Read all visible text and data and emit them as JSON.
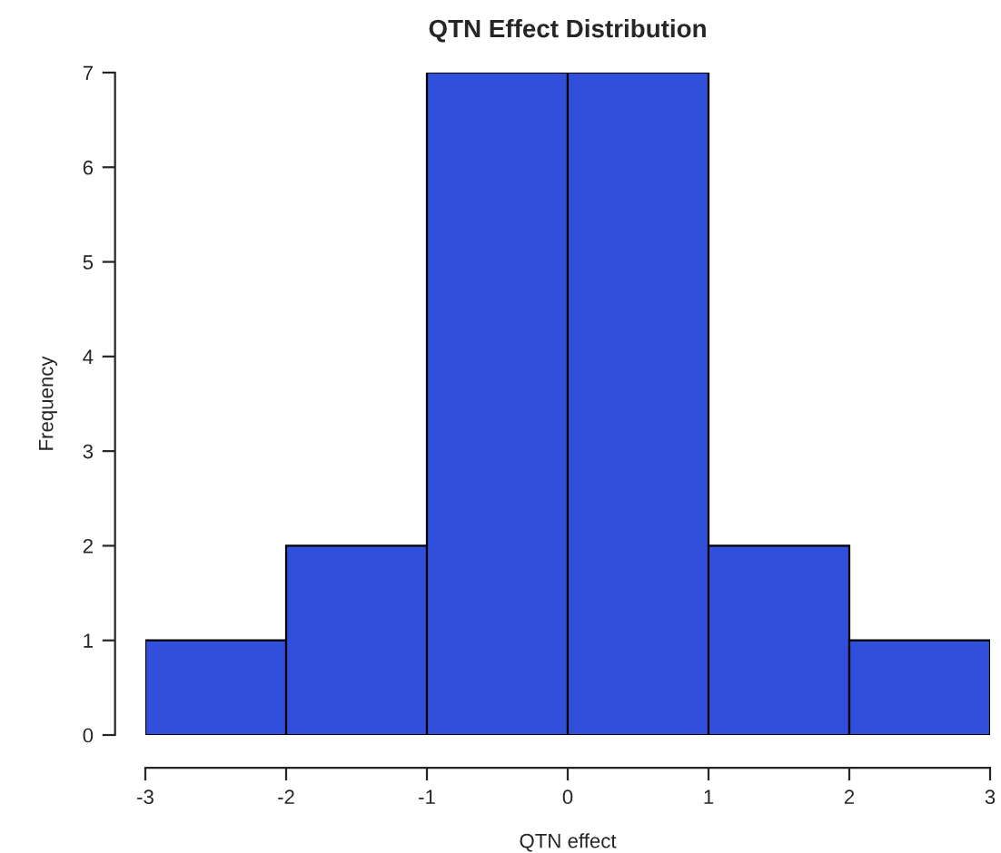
{
  "chart_data": {
    "type": "histogram",
    "title": "QTN Effect Distribution",
    "xlabel": "QTN effect",
    "ylabel": "Frequency",
    "bins": [
      -3,
      -2,
      -1,
      0,
      1,
      2,
      3
    ],
    "values": [
      1,
      2,
      7,
      7,
      2,
      1
    ],
    "color": "#3050dc",
    "xlim": [
      -3,
      3
    ],
    "xticks": [
      -3,
      -2,
      -1,
      0,
      1,
      2,
      3
    ],
    "ylim": [
      0,
      7
    ],
    "yticks": [
      0,
      1,
      2,
      3,
      4,
      5,
      6,
      7
    ],
    "grid": false,
    "legend": false
  }
}
